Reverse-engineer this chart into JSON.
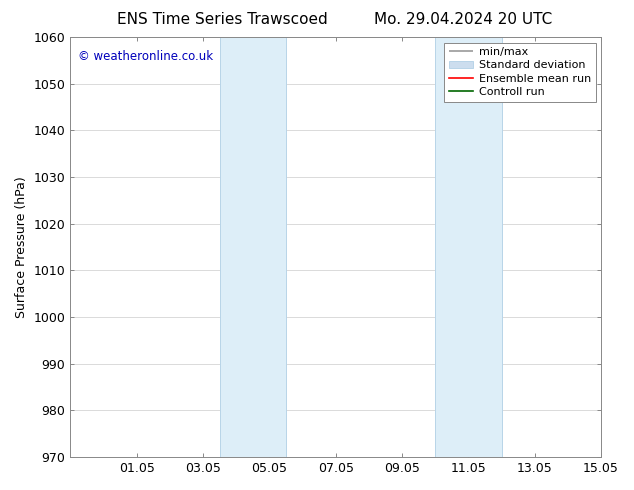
{
  "title_left": "ENS Time Series Trawscoed",
  "title_right": "Mo. 29.04.2024 20 UTC",
  "ylabel": "Surface Pressure (hPa)",
  "ylim": [
    970,
    1060
  ],
  "yticks": [
    970,
    980,
    990,
    1000,
    1010,
    1020,
    1030,
    1040,
    1050,
    1060
  ],
  "xtick_labels": [
    "01.05",
    "03.05",
    "05.05",
    "07.05",
    "09.05",
    "11.05",
    "13.05",
    "15.05"
  ],
  "xtick_positions": [
    2,
    4,
    6,
    8,
    10,
    12,
    14,
    16
  ],
  "xlim": [
    0,
    16
  ],
  "shaded_regions": [
    {
      "x_start": 4.5,
      "x_end": 6.5,
      "color": "#ddeef8"
    },
    {
      "x_start": 11.0,
      "x_end": 13.0,
      "color": "#ddeef8"
    }
  ],
  "shaded_edge_color": "#b8d4e8",
  "copyright_text": "© weatheronline.co.uk",
  "copyright_color": "#0000bb",
  "copyright_fontsize": 8.5,
  "legend_labels": [
    "min/max",
    "Standard deviation",
    "Ensemble mean run",
    "Controll run"
  ],
  "legend_colors": [
    "#999999",
    "#ccddee",
    "#ff0000",
    "#006600"
  ],
  "background_color": "#ffffff",
  "grid_color": "#cccccc",
  "title_fontsize": 11,
  "ylabel_fontsize": 9,
  "tick_fontsize": 9,
  "legend_fontsize": 8
}
